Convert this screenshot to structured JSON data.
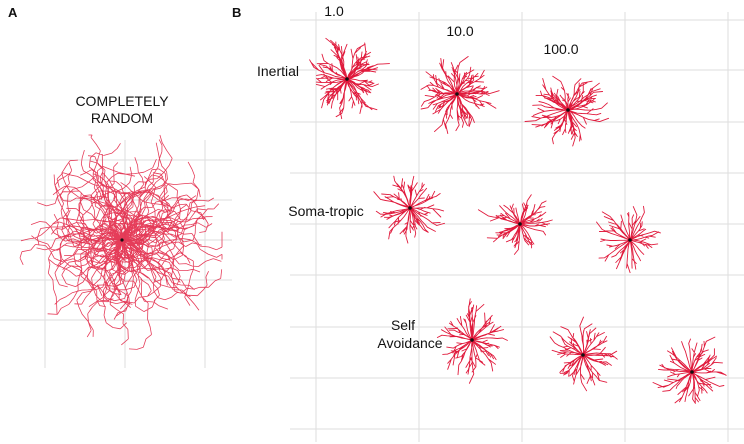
{
  "panels": {
    "a": {
      "letter": "A",
      "title_line1": "COMPLETELY",
      "title_line2": "RANDOM"
    },
    "b": {
      "letter": "B",
      "columns": [
        "1.0",
        "10.0",
        "100.0"
      ],
      "rows": {
        "inertial": "Inertial",
        "somatropic": "Soma-tropic",
        "self_line1": "Self",
        "self_line2": "Avoidance"
      }
    }
  },
  "colors": {
    "tree": "#e01a3c",
    "soma": "#111111",
    "grid": "#dedede"
  }
}
